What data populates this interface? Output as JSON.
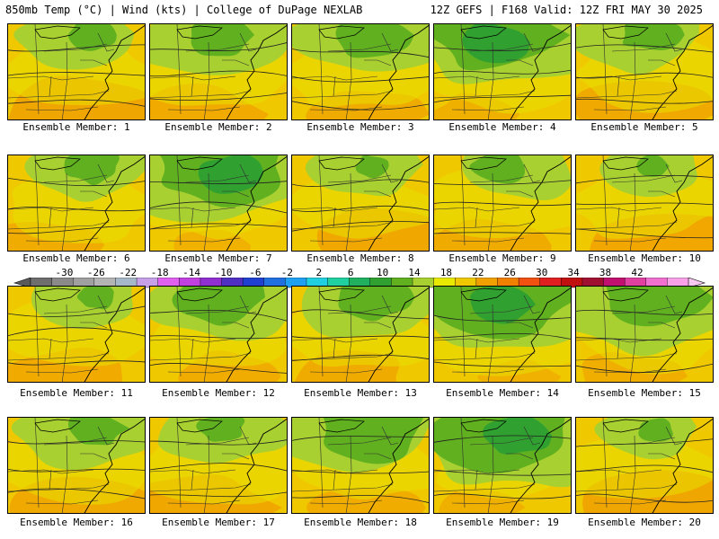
{
  "header": {
    "left": "850mb Temp (°C) | Wind (kts) | College of DuPage NEXLAB",
    "right": "12Z GEFS | F168 Valid: 12Z FRI MAY 30 2025"
  },
  "colorbar": {
    "ticks": [
      "-30",
      "-26",
      "-22",
      "-18",
      "-14",
      "-10",
      "-6",
      "-2",
      "2",
      "6",
      "10",
      "14",
      "18",
      "22",
      "26",
      "30",
      "34",
      "38",
      "42"
    ],
    "colors": [
      "#6e6e6e",
      "#8a8a8a",
      "#a0a0a0",
      "#b4b4b4",
      "#a6b8c8",
      "#c8a0e8",
      "#e060f0",
      "#c040e0",
      "#9030d0",
      "#5030c0",
      "#2040d0",
      "#2070e0",
      "#20a0f0",
      "#20d0e0",
      "#20d0a0",
      "#20b060",
      "#30a030",
      "#60b020",
      "#a8d030",
      "#e8e800",
      "#f0c800",
      "#f0a000",
      "#f08000",
      "#f05010",
      "#e02020",
      "#c01010",
      "#a01030",
      "#c01070",
      "#e040a0",
      "#f070d0",
      "#f8a0e8"
    ]
  },
  "panels": [
    {
      "label": "Ensemble Member: 1",
      "greens": [
        0.4,
        0.15
      ],
      "warmth": 0.7
    },
    {
      "label": "Ensemble Member: 2",
      "greens": [
        0.55,
        0.25
      ],
      "warmth": 0.5
    },
    {
      "label": "Ensemble Member: 3",
      "greens": [
        0.55,
        0.3
      ],
      "warmth": 0.45
    },
    {
      "label": "Ensemble Member: 4",
      "greens": [
        0.75,
        0.55
      ],
      "warmth": 0.2
    },
    {
      "label": "Ensemble Member: 5",
      "greens": [
        0.45,
        0.2
      ],
      "warmth": 0.55
    },
    {
      "label": "Ensemble Member: 6",
      "greens": [
        0.45,
        0.2
      ],
      "warmth": 0.4
    },
    {
      "label": "Ensemble Member: 7",
      "greens": [
        0.8,
        0.6
      ],
      "warmth": 0.15
    },
    {
      "label": "Ensemble Member: 8",
      "greens": [
        0.35,
        0.1
      ],
      "warmth": 0.6
    },
    {
      "label": "Ensemble Member: 9",
      "greens": [
        0.45,
        0.2
      ],
      "warmth": 0.45
    },
    {
      "label": "Ensemble Member: 10",
      "greens": [
        0.3,
        0.1
      ],
      "warmth": 0.65
    },
    {
      "label": "Ensemble Member: 11",
      "greens": [
        0.35,
        0.1
      ],
      "warmth": 0.5
    },
    {
      "label": "Ensemble Member: 12",
      "greens": [
        0.6,
        0.35
      ],
      "warmth": 0.4
    },
    {
      "label": "Ensemble Member: 13",
      "greens": [
        0.55,
        0.3
      ],
      "warmth": 0.45
    },
    {
      "label": "Ensemble Member: 14",
      "greens": [
        0.85,
        0.65
      ],
      "warmth": 0.15
    },
    {
      "label": "Ensemble Member: 15",
      "greens": [
        0.75,
        0.45
      ],
      "warmth": 0.3
    },
    {
      "label": "Ensemble Member: 16",
      "greens": [
        0.5,
        0.2
      ],
      "warmth": 0.55
    },
    {
      "label": "Ensemble Member: 17",
      "greens": [
        0.45,
        0.15
      ],
      "warmth": 0.6
    },
    {
      "label": "Ensemble Member: 18",
      "greens": [
        0.7,
        0.45
      ],
      "warmth": 0.35
    },
    {
      "label": "Ensemble Member: 19",
      "greens": [
        0.85,
        0.65
      ],
      "warmth": 0.2
    },
    {
      "label": "Ensemble Member: 20",
      "greens": [
        0.3,
        0.1
      ],
      "warmth": 0.7
    }
  ]
}
